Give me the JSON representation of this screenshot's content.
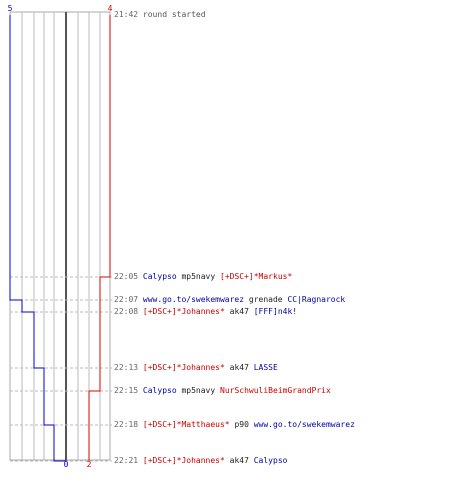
{
  "chart_data": {
    "type": "line",
    "title": "",
    "xlabel": "",
    "ylabel": "",
    "grid": true,
    "team_colors": {
      "blue": "#0000cc",
      "red": "#dd0000"
    },
    "start_labels": {
      "blue": "5",
      "red": "4"
    },
    "end_labels": {
      "blue": "0",
      "red": "2"
    },
    "events": [
      {
        "time": "22:05",
        "killer": "Calypso",
        "killer_team": "blue",
        "weapon": "mp5navy",
        "victim": "[+DSC+]*Markus*",
        "victim_team": "red",
        "blue_alive": 5,
        "red_alive": 3
      },
      {
        "time": "22:07",
        "killer": "www.go.to/swekemwarez",
        "killer_team": "blue",
        "weapon": "grenade",
        "victim": "CC|Ragnarock",
        "victim_team": "blue",
        "blue_alive": 4,
        "red_alive": 3
      },
      {
        "time": "22:08",
        "killer": "[+DSC+]*Johannes*",
        "killer_team": "red",
        "weapon": "ak47",
        "victim": "[FFF]n4k!",
        "victim_team": "blue",
        "blue_alive": 3,
        "red_alive": 3
      },
      {
        "time": "22:13",
        "killer": "[+DSC+]*Johannes*",
        "killer_team": "red",
        "weapon": "ak47",
        "victim": "LASSE",
        "victim_team": "blue",
        "blue_alive": 2,
        "red_alive": 3
      },
      {
        "time": "22:15",
        "killer": "Calypso",
        "killer_team": "blue",
        "weapon": "mp5navy",
        "victim": "NurSchwuliBeimGrandPrix",
        "victim_team": "red",
        "blue_alive": 2,
        "red_alive": 2
      },
      {
        "time": "22:18",
        "killer": "[+DSC+]*Matthaeus*",
        "killer_team": "red",
        "weapon": "p90",
        "victim": "www.go.to/swekemwarez",
        "victim_team": "blue",
        "blue_alive": 1,
        "red_alive": 2
      },
      {
        "time": "22:21",
        "killer": "[+DSC+]*Johannes*",
        "killer_team": "red",
        "weapon": "ak47",
        "victim": "Calypso",
        "victim_team": "blue",
        "blue_alive": 0,
        "red_alive": 2
      }
    ],
    "round_start": {
      "time": "21:42",
      "text": "round started"
    }
  }
}
